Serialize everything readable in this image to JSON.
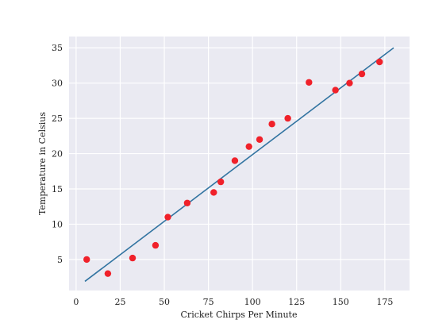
{
  "chart_data": {
    "type": "scatter",
    "xlabel": "Cricket Chirps Per Minute",
    "ylabel": "Temperature in Celsius",
    "xlim": [
      -4,
      189
    ],
    "ylim": [
      0.6,
      36.6
    ],
    "xticks": [
      0,
      25,
      50,
      75,
      100,
      125,
      150,
      175
    ],
    "yticks": [
      5,
      10,
      15,
      20,
      25,
      30,
      35
    ],
    "grid": true,
    "background_color": "#eaeaf2",
    "series": [
      {
        "type": "scatter",
        "color": "#f0212a",
        "points": [
          {
            "x": 6,
            "y": 5
          },
          {
            "x": 18,
            "y": 3
          },
          {
            "x": 32,
            "y": 5.2
          },
          {
            "x": 45,
            "y": 7
          },
          {
            "x": 52,
            "y": 11
          },
          {
            "x": 63,
            "y": 13
          },
          {
            "x": 78,
            "y": 14.5
          },
          {
            "x": 82,
            "y": 16
          },
          {
            "x": 90,
            "y": 19
          },
          {
            "x": 98,
            "y": 21
          },
          {
            "x": 104,
            "y": 22
          },
          {
            "x": 111,
            "y": 24.2
          },
          {
            "x": 120,
            "y": 25
          },
          {
            "x": 132,
            "y": 30.1
          },
          {
            "x": 147,
            "y": 29
          },
          {
            "x": 155,
            "y": 30
          },
          {
            "x": 162,
            "y": 31.3
          },
          {
            "x": 172,
            "y": 33
          }
        ]
      },
      {
        "type": "line",
        "color": "#3274a1",
        "points": [
          {
            "x": 5,
            "y": 1.9
          },
          {
            "x": 180,
            "y": 35
          }
        ]
      }
    ]
  }
}
